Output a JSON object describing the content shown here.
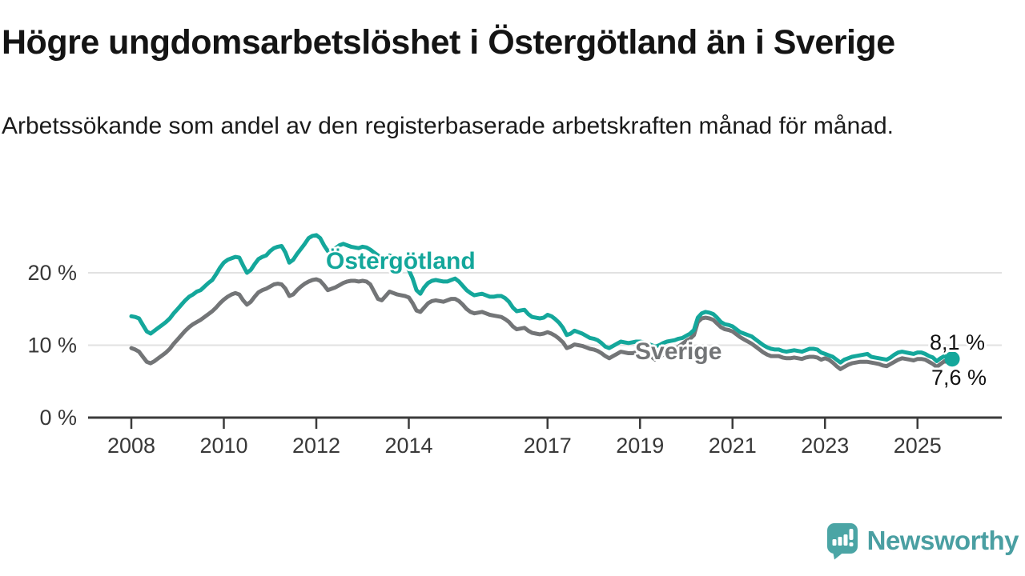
{
  "title": "Högre ungdomsarbetslöshet i Östergötland än i Sverige",
  "subtitle": "Arbetssökande som andel av den registerbaserade arbetskraften månad för månad.",
  "footer": {
    "brand": "Newsworthy",
    "logo_icon": "newsworthy-speech-bubble-chart-icon"
  },
  "colors": {
    "accent_teal": "#14a79b",
    "neutral_gray": "#737577",
    "gridline": "#e2e2e2",
    "axis": "#3b3b3b",
    "axis_text": "#383838",
    "title_text": "#141414",
    "logo_teal": "#4a9fa2"
  },
  "chart_data": {
    "type": "line",
    "title": "Högre ungdomsarbetslöshet i Östergötland än i Sverige",
    "subtitle": "Arbetssökande som andel av den registerbaserade arbetskraften månad för månad.",
    "unit": "%",
    "grid": "horizontal-only",
    "legend_position": "inline-labels-on-lines",
    "x_axis": {
      "start": "2008-01",
      "end": "2025-10",
      "frequency": "monthly",
      "ticks": [
        2008,
        2010,
        2012,
        2014,
        2017,
        2019,
        2021,
        2023,
        2025
      ]
    },
    "y_axis": {
      "tick_values": [
        0,
        10,
        20
      ],
      "tick_labels": [
        "0 %",
        "10 %",
        "20 %"
      ],
      "range": [
        0,
        26.5
      ]
    },
    "series": [
      {
        "name": "Östergötland",
        "color": "#14a79b",
        "end_label": "8,1 %",
        "values": [
          14.0,
          13.9,
          13.7,
          12.8,
          11.9,
          11.6,
          12.0,
          12.4,
          12.8,
          13.2,
          13.7,
          14.4,
          15.0,
          15.6,
          16.2,
          16.7,
          17.0,
          17.4,
          17.6,
          18.1,
          18.6,
          19.0,
          19.8,
          20.7,
          21.4,
          21.8,
          22.0,
          22.2,
          22.1,
          21.0,
          20.0,
          20.4,
          21.2,
          21.9,
          22.2,
          22.4,
          23.0,
          23.4,
          23.6,
          23.7,
          22.8,
          21.4,
          21.8,
          22.6,
          23.3,
          24.0,
          24.8,
          25.1,
          25.2,
          24.8,
          23.8,
          23.0,
          23.2,
          23.4,
          23.8,
          24.0,
          23.8,
          23.6,
          23.5,
          23.4,
          23.6,
          23.5,
          23.2,
          22.8,
          22.4,
          22.0,
          22.2,
          22.4,
          22.2,
          21.8,
          21.4,
          21.0,
          20.4,
          19.2,
          17.6,
          17.1,
          18.0,
          18.6,
          18.9,
          19.0,
          18.9,
          18.8,
          18.8,
          19.0,
          19.2,
          18.8,
          18.2,
          17.6,
          17.2,
          16.9,
          17.0,
          17.1,
          16.9,
          16.7,
          16.7,
          16.8,
          16.8,
          16.5,
          16.0,
          15.2,
          14.7,
          14.8,
          14.9,
          14.3,
          13.9,
          13.8,
          13.7,
          13.8,
          14.2,
          14.0,
          13.6,
          13.1,
          12.4,
          11.4,
          11.6,
          12.0,
          11.8,
          11.6,
          11.3,
          11.0,
          10.9,
          10.7,
          10.3,
          9.8,
          9.6,
          9.9,
          10.2,
          10.5,
          10.4,
          10.3,
          10.4,
          10.5,
          10.5,
          10.4,
          10.2,
          10.0,
          9.8,
          10.0,
          10.3,
          10.5,
          10.6,
          10.7,
          10.9,
          11.0,
          11.3,
          11.6,
          12.1,
          13.8,
          14.4,
          14.6,
          14.5,
          14.3,
          13.8,
          13.2,
          12.9,
          12.8,
          12.6,
          12.2,
          11.8,
          11.6,
          11.4,
          11.2,
          10.8,
          10.4,
          10.0,
          9.7,
          9.5,
          9.4,
          9.4,
          9.2,
          9.1,
          9.2,
          9.3,
          9.2,
          9.1,
          9.3,
          9.5,
          9.5,
          9.4,
          9.0,
          8.8,
          8.6,
          8.4,
          8.0,
          7.6,
          8.0,
          8.2,
          8.4,
          8.5,
          8.6,
          8.7,
          8.8,
          8.4,
          8.3,
          8.2,
          8.1,
          8.0,
          8.3,
          8.7,
          9.0,
          9.1,
          9.0,
          8.9,
          8.8,
          9.0,
          9.0,
          8.8,
          8.5,
          8.3,
          7.8,
          8.2,
          8.5,
          8.3,
          8.1
        ]
      },
      {
        "name": "Sverige",
        "color": "#737577",
        "end_label": "7,6 %",
        "values": [
          9.6,
          9.4,
          9.1,
          8.4,
          7.7,
          7.5,
          7.8,
          8.2,
          8.6,
          9.0,
          9.5,
          10.2,
          10.8,
          11.4,
          12.0,
          12.5,
          12.9,
          13.2,
          13.5,
          13.9,
          14.3,
          14.7,
          15.2,
          15.8,
          16.3,
          16.7,
          17.0,
          17.2,
          17.0,
          16.2,
          15.6,
          16.0,
          16.7,
          17.3,
          17.6,
          17.8,
          18.1,
          18.4,
          18.5,
          18.4,
          17.8,
          16.8,
          17.0,
          17.6,
          18.1,
          18.5,
          18.8,
          19.0,
          19.1,
          18.9,
          18.3,
          17.6,
          17.8,
          18.0,
          18.3,
          18.6,
          18.8,
          18.9,
          18.9,
          18.8,
          18.9,
          18.8,
          18.4,
          17.4,
          16.4,
          16.2,
          16.8,
          17.4,
          17.2,
          17.0,
          16.9,
          16.8,
          16.6,
          15.8,
          14.8,
          14.6,
          15.2,
          15.8,
          16.1,
          16.2,
          16.1,
          16.0,
          16.2,
          16.4,
          16.4,
          16.1,
          15.6,
          15.0,
          14.6,
          14.4,
          14.5,
          14.6,
          14.4,
          14.2,
          14.1,
          14.0,
          13.9,
          13.6,
          13.2,
          12.6,
          12.2,
          12.3,
          12.4,
          12.0,
          11.7,
          11.6,
          11.5,
          11.6,
          11.8,
          11.6,
          11.3,
          10.9,
          10.4,
          9.6,
          9.8,
          10.1,
          10.0,
          9.9,
          9.7,
          9.5,
          9.4,
          9.2,
          8.9,
          8.5,
          8.2,
          8.5,
          8.8,
          9.1,
          9.0,
          8.9,
          8.9,
          9.0,
          9.0,
          8.9,
          8.7,
          8.4,
          8.0,
          8.3,
          8.7,
          9.0,
          9.2,
          9.5,
          9.8,
          10.2,
          10.6,
          10.9,
          11.4,
          13.2,
          13.7,
          13.8,
          13.7,
          13.5,
          13.0,
          12.5,
          12.2,
          12.1,
          11.9,
          11.5,
          11.1,
          10.8,
          10.5,
          10.2,
          9.8,
          9.4,
          9.0,
          8.7,
          8.5,
          8.5,
          8.5,
          8.3,
          8.2,
          8.2,
          8.3,
          8.2,
          8.1,
          8.3,
          8.4,
          8.4,
          8.3,
          8.0,
          8.2,
          8.0,
          7.6,
          7.1,
          6.7,
          7.0,
          7.3,
          7.5,
          7.6,
          7.7,
          7.7,
          7.7,
          7.6,
          7.5,
          7.4,
          7.2,
          7.1,
          7.4,
          7.7,
          8.0,
          8.2,
          8.1,
          8.0,
          7.9,
          8.1,
          8.1,
          8.0,
          7.7,
          7.4,
          7.0,
          7.4,
          7.8,
          7.7,
          7.6
        ]
      }
    ]
  }
}
